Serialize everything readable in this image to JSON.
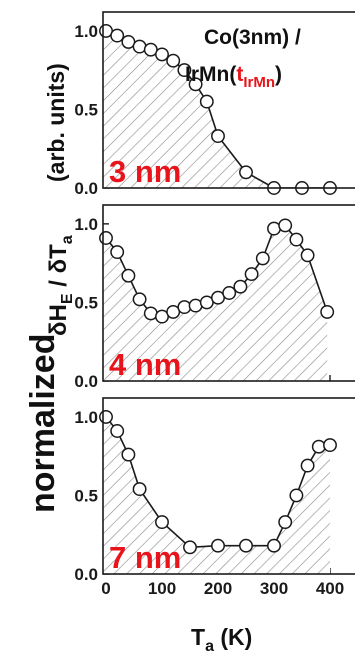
{
  "chart_data": [
    {
      "type": "area",
      "label": "3 nm",
      "annotation_line1": "Co(3nm) /",
      "annotation_line2_prefix": "IrMn(",
      "annotation_t": "t",
      "annotation_sub": "IrMn",
      "annotation_line2_suffix": ")",
      "x": [
        0,
        20,
        40,
        60,
        80,
        100,
        120,
        140,
        160,
        180,
        200,
        250,
        300,
        350,
        400
      ],
      "y": [
        1.0,
        0.97,
        0.93,
        0.9,
        0.88,
        0.85,
        0.81,
        0.75,
        0.66,
        0.55,
        0.33,
        0.1,
        0.0,
        0.0,
        0.0
      ],
      "xlim": [
        0,
        400
      ],
      "ylim": [
        0.0,
        1.12
      ],
      "yticks": [
        "0.0",
        "0.5",
        "1.0"
      ]
    },
    {
      "type": "area",
      "label": "4 nm",
      "x": [
        0,
        20,
        40,
        60,
        80,
        100,
        120,
        140,
        160,
        180,
        200,
        220,
        240,
        260,
        280,
        300,
        320,
        340,
        360,
        395
      ],
      "y": [
        0.91,
        0.82,
        0.67,
        0.52,
        0.43,
        0.41,
        0.44,
        0.47,
        0.48,
        0.5,
        0.53,
        0.56,
        0.6,
        0.68,
        0.78,
        0.97,
        0.99,
        0.9,
        0.8,
        0.44
      ],
      "xlim": [
        0,
        400
      ],
      "ylim": [
        0.0,
        1.12
      ],
      "yticks": [
        "0.0",
        "0.5",
        "1.0"
      ]
    },
    {
      "type": "area",
      "label": "7 nm",
      "x": [
        0,
        20,
        40,
        60,
        100,
        150,
        200,
        250,
        300,
        320,
        340,
        360,
        380,
        400
      ],
      "y": [
        1.0,
        0.91,
        0.76,
        0.54,
        0.33,
        0.17,
        0.18,
        0.18,
        0.18,
        0.33,
        0.5,
        0.69,
        0.81,
        0.82
      ],
      "xlim": [
        0,
        400
      ],
      "ylim": [
        0.0,
        1.12
      ],
      "yticks": [
        "0.0",
        "0.5",
        "1.0"
      ],
      "xticks": [
        "0",
        "100",
        "200",
        "300",
        "400"
      ]
    }
  ],
  "axis": {
    "ylabel_normalized": "normalized",
    "ylabel_dH": "δH",
    "ylabel_dH_sub": "E",
    "ylabel_slash": " / δT",
    "ylabel_dT_sub": "a",
    "ylabel_units": "(arb. units)",
    "xlabel_T": "T",
    "xlabel_sub": "a",
    "xlabel_unit": " (K)"
  },
  "colors": {
    "line": "#1a1a1a",
    "hatch": "#8a8a8a",
    "label_red": "#e8141b",
    "marker_fill": "#ffffff"
  }
}
